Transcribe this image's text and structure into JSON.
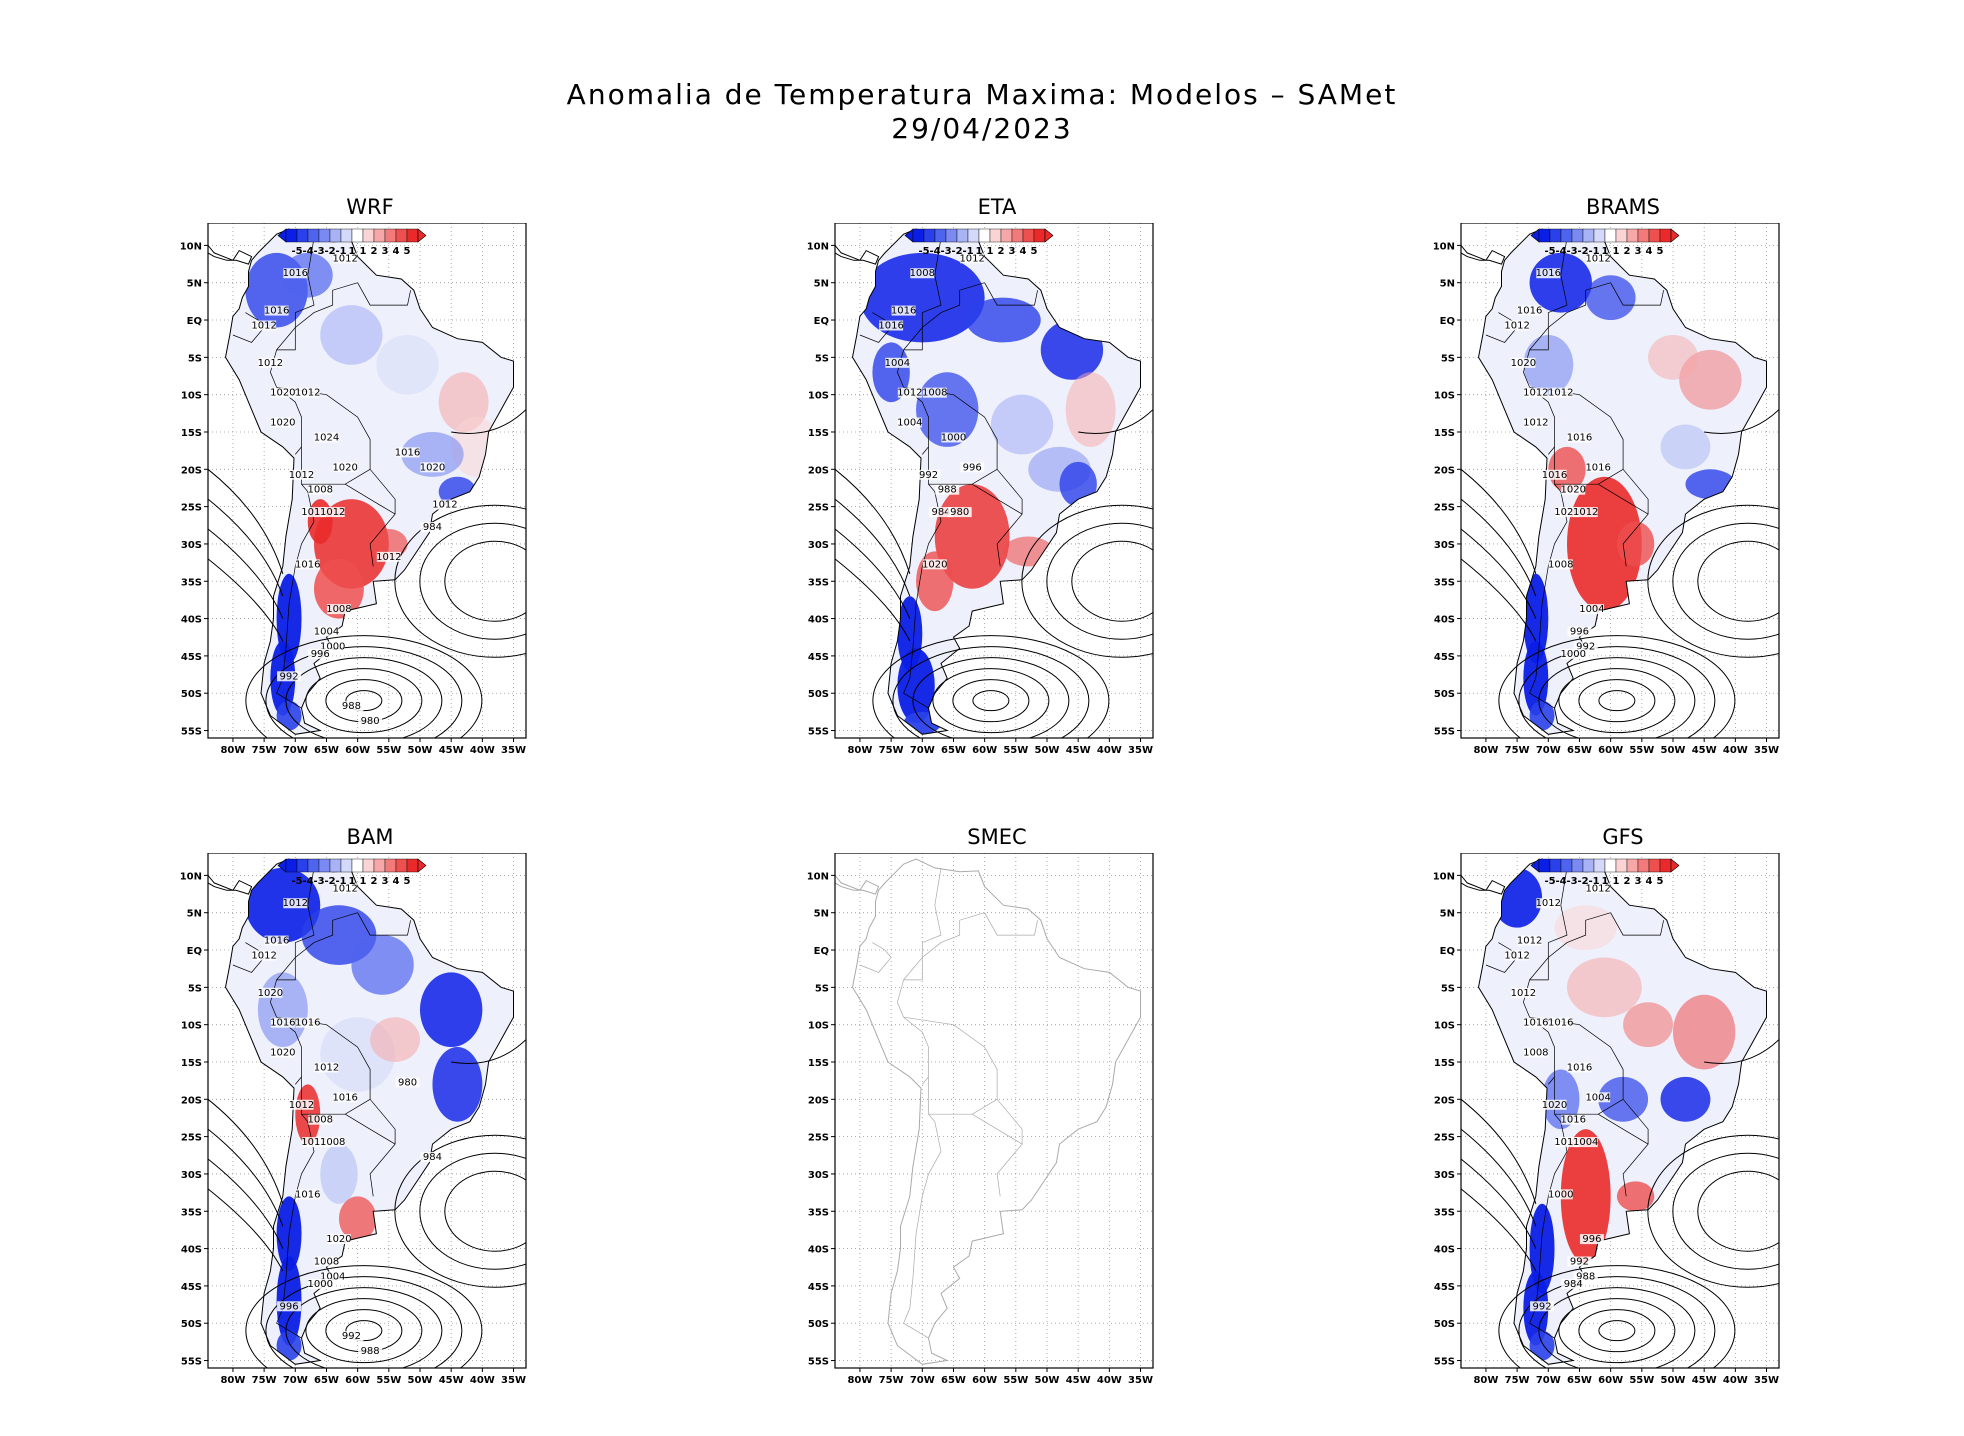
{
  "figure": {
    "title_line1": "Anomalia de Temperatura Maxima: Modelos – SAMet",
    "title_line2": "29/04/2023"
  },
  "axes": {
    "y_ticks": [
      "10N",
      "5N",
      "EQ",
      "5S",
      "10S",
      "15S",
      "20S",
      "25S",
      "30S",
      "35S",
      "40S",
      "45S",
      "50S",
      "55S"
    ],
    "x_ticks": [
      "80W",
      "75W",
      "70W",
      "65W",
      "60W",
      "55W",
      "50W",
      "45W",
      "40W",
      "35W"
    ]
  },
  "colorbar": {
    "labels": [
      "-5",
      "-4",
      "-3",
      "-2",
      "-1",
      "1",
      "1",
      "2",
      "3",
      "4",
      "5"
    ],
    "colors": [
      "#0a1ee6",
      "#2a40ea",
      "#4f64ee",
      "#7a8af2",
      "#a8b3f6",
      "#d4d9fa",
      "#ffffff",
      "#fad4d4",
      "#f6a8a8",
      "#f27a7a",
      "#ee4f4f",
      "#ea2a2a"
    ]
  },
  "panels": [
    {
      "id": "wrf",
      "title": "WRF",
      "has_data": true,
      "isobars": [
        "1012",
        "1012",
        "1016",
        "1016",
        "1012",
        "1012",
        "1020",
        "1012",
        "1020",
        "1024",
        "1020",
        "1012",
        "1008",
        "1016",
        "1012",
        "1016",
        "1008",
        "1004",
        "1000",
        "996",
        "992",
        "988",
        "980",
        "984",
        "1016",
        "1020",
        "1012",
        "1012"
      ]
    },
    {
      "id": "eta",
      "title": "ETA",
      "has_data": true,
      "isobars": [
        "1012",
        "1012",
        "1008",
        "1016",
        "1016",
        "1004",
        "1012",
        "1008",
        "1004",
        "1000",
        "996",
        "992",
        "988",
        "984",
        "980",
        "1020"
      ]
    },
    {
      "id": "brams",
      "title": "BRAMS",
      "has_data": true,
      "isobars": [
        "1012",
        "1012",
        "1016",
        "1016",
        "1012",
        "1020",
        "1012",
        "1012",
        "1012",
        "1016",
        "1016",
        "1016",
        "1020",
        "1020",
        "1012",
        "1008",
        "1004",
        "996",
        "992",
        "1000"
      ]
    },
    {
      "id": "bam",
      "title": "BAM",
      "has_data": true,
      "isobars": [
        "1012",
        "1012",
        "1012",
        "1016",
        "1012",
        "1020",
        "1016",
        "1016",
        "1020",
        "1012",
        "1016",
        "1012",
        "1008",
        "1012",
        "1008",
        "1016",
        "1020",
        "1008",
        "1004",
        "1000",
        "996",
        "992",
        "988",
        "984",
        "980"
      ]
    },
    {
      "id": "smec",
      "title": "SMEC",
      "has_data": false,
      "isobars": []
    },
    {
      "id": "gfs",
      "title": "GFS",
      "has_data": true,
      "isobars": [
        "1016",
        "1012",
        "1012",
        "1012",
        "1012",
        "1012",
        "1016",
        "1016",
        "1008",
        "1016",
        "1004",
        "1020",
        "1016",
        "1012",
        "1004",
        "1000",
        "996",
        "992",
        "988",
        "984",
        "992"
      ]
    }
  ]
}
